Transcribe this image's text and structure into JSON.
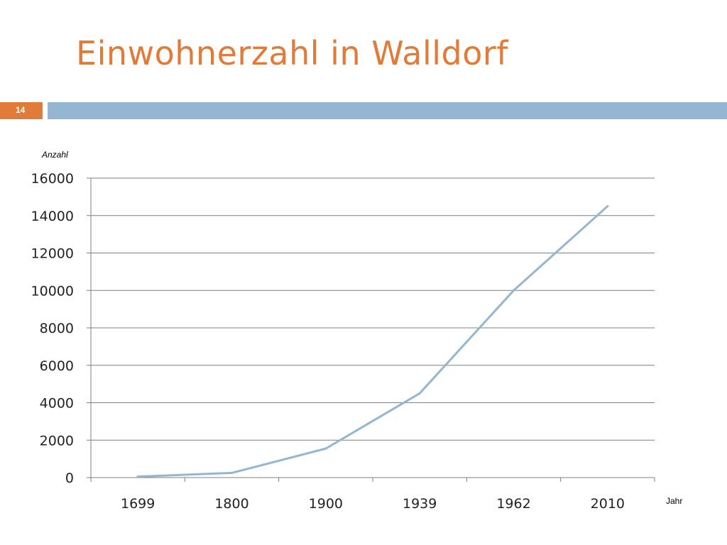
{
  "slide": {
    "title": "Einwohnerzahl in Walldorf",
    "number": "14"
  },
  "colors": {
    "title": "#e07b39",
    "number_box": "#e07b39",
    "header_bar": "#94b6d2",
    "line": "#94b6d2",
    "grid": "#7f7f7f"
  },
  "chart_data": {
    "type": "line",
    "title": "",
    "xlabel": "Jahr",
    "ylabel": "Anzahl",
    "categories": [
      "1699",
      "1800",
      "1900",
      "1939",
      "1962",
      "2010"
    ],
    "series": [
      {
        "values": [
          50,
          250,
          1550,
          4500,
          10000,
          14500
        ]
      }
    ],
    "ylim": [
      0,
      16000
    ],
    "yticks": [
      0,
      2000,
      4000,
      6000,
      8000,
      10000,
      12000,
      14000,
      16000
    ],
    "grid": "horizontal",
    "legend": "none"
  }
}
